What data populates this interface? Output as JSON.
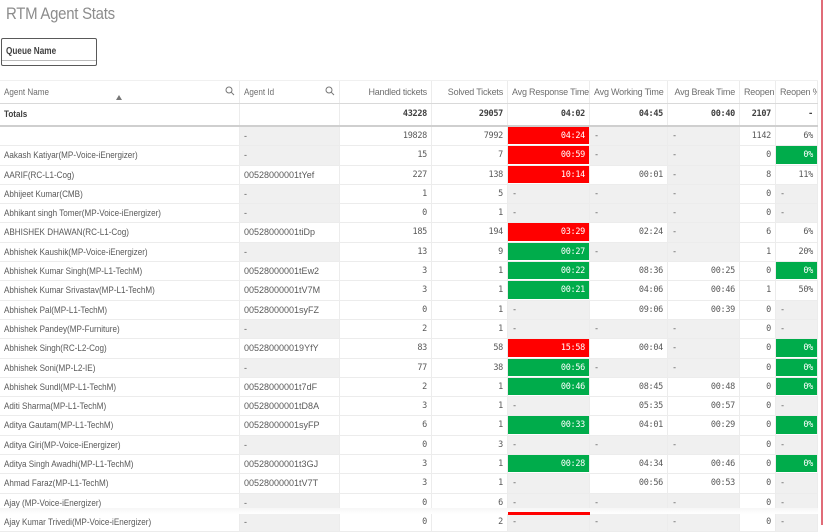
{
  "title": "RTM Agent Stats",
  "filter": {
    "queue_name_label": "Queue Name"
  },
  "colors": {
    "red": "#ff0000",
    "green": "#00ac4b",
    "dash_bg": "#f0f0f0",
    "accent_border": "#e06c78"
  },
  "table": {
    "headers": {
      "agent_name": "Agent Name",
      "agent_id": "Agent Id",
      "handled": "Handled tickets",
      "solved": "Solved Tickets",
      "avg_response": "Avg Response Time",
      "avg_working": "Avg Working Time",
      "avg_break": "Avg Break Time",
      "reopen": "Reopen",
      "reopen_pct": "Reopen %"
    },
    "totals": {
      "label": "Totals",
      "handled": "43228",
      "solved": "29057",
      "avg_response": "04:02",
      "avg_working": "04:45",
      "avg_break": "00:40",
      "reopen": "2107",
      "reopen_pct": "-"
    },
    "rows": [
      {
        "name": "",
        "id": "-",
        "handled": "19828",
        "solved": "7992",
        "resp": "04:24",
        "resp_c": "red",
        "work": "-",
        "brk": "-",
        "reo": "1142",
        "reop": "6%",
        "reop_c": ""
      },
      {
        "name": "Aakash Katiyar(MP-Voice-iEnergizer)",
        "id": "-",
        "handled": "15",
        "solved": "7",
        "resp": "00:59",
        "resp_c": "red",
        "work": "-",
        "brk": "-",
        "reo": "0",
        "reop": "0%",
        "reop_c": "green"
      },
      {
        "name": "AARIF(RC-L1-Cog)",
        "id": "00528000001tYef",
        "handled": "227",
        "solved": "138",
        "resp": "10:14",
        "resp_c": "red",
        "work": "00:01",
        "brk": "-",
        "reo": "8",
        "reop": "11%",
        "reop_c": ""
      },
      {
        "name": "Abhijeet Kumar(CMB)",
        "id": "-",
        "handled": "1",
        "solved": "5",
        "resp": "-",
        "resp_c": "",
        "work": "-",
        "brk": "-",
        "reo": "0",
        "reop": "-",
        "reop_c": ""
      },
      {
        "name": "Abhikant singh Tomer(MP-Voice-iEnergizer)",
        "id": "-",
        "handled": "0",
        "solved": "1",
        "resp": "-",
        "resp_c": "",
        "work": "-",
        "brk": "-",
        "reo": "0",
        "reop": "-",
        "reop_c": ""
      },
      {
        "name": "ABHISHEK DHAWAN(RC-L1-Cog)",
        "id": "00528000001tiDp",
        "handled": "185",
        "solved": "194",
        "resp": "03:29",
        "resp_c": "red",
        "work": "02:24",
        "brk": "-",
        "reo": "6",
        "reop": "6%",
        "reop_c": ""
      },
      {
        "name": "Abhishek Kaushik(MP-Voice-iEnergizer)",
        "id": "-",
        "handled": "13",
        "solved": "9",
        "resp": "00:27",
        "resp_c": "green",
        "work": "-",
        "brk": "-",
        "reo": "1",
        "reop": "20%",
        "reop_c": ""
      },
      {
        "name": "Abhishek Kumar Singh(MP-L1-TechM)",
        "id": "00528000001tEw2",
        "handled": "3",
        "solved": "1",
        "resp": "00:22",
        "resp_c": "green",
        "work": "08:36",
        "brk": "00:25",
        "reo": "0",
        "reop": "0%",
        "reop_c": "green"
      },
      {
        "name": "Abhishek Kumar Srivastav(MP-L1-TechM)",
        "id": "00528000001tV7M",
        "handled": "3",
        "solved": "1",
        "resp": "00:21",
        "resp_c": "green",
        "work": "04:06",
        "brk": "00:46",
        "reo": "1",
        "reop": "50%",
        "reop_c": ""
      },
      {
        "name": "Abhishek Pal(MP-L1-TechM)",
        "id": "00528000001syFZ",
        "handled": "0",
        "solved": "1",
        "resp": "-",
        "resp_c": "",
        "work": "09:06",
        "brk": "00:39",
        "reo": "0",
        "reop": "-",
        "reop_c": ""
      },
      {
        "name": "Abhishek Pandey(MP-Furniture)",
        "id": "-",
        "handled": "2",
        "solved": "1",
        "resp": "-",
        "resp_c": "",
        "work": "-",
        "brk": "-",
        "reo": "0",
        "reop": "-",
        "reop_c": ""
      },
      {
        "name": "Abhishek Singh(RC-L2-Cog)",
        "id": "005280000019YfY",
        "handled": "83",
        "solved": "58",
        "resp": "15:58",
        "resp_c": "red",
        "work": "00:04",
        "brk": "-",
        "reo": "0",
        "reop": "0%",
        "reop_c": "green"
      },
      {
        "name": "Abhishek Soni(MP-L2-IE)",
        "id": "-",
        "handled": "77",
        "solved": "38",
        "resp": "00:56",
        "resp_c": "green",
        "work": "-",
        "brk": "-",
        "reo": "0",
        "reop": "0%",
        "reop_c": "green"
      },
      {
        "name": "Abhishek Sundl(MP-L1-TechM)",
        "id": "00528000001t7dF",
        "handled": "2",
        "solved": "1",
        "resp": "00:46",
        "resp_c": "green",
        "work": "08:45",
        "brk": "00:48",
        "reo": "0",
        "reop": "0%",
        "reop_c": "green"
      },
      {
        "name": "Aditi Sharma(MP-L1-TechM)",
        "id": "00528000001tD8A",
        "handled": "3",
        "solved": "1",
        "resp": "-",
        "resp_c": "",
        "work": "05:35",
        "brk": "00:57",
        "reo": "0",
        "reop": "-",
        "reop_c": ""
      },
      {
        "name": "Aditya Gautam(MP-L1-TechM)",
        "id": "00528000001syFP",
        "handled": "6",
        "solved": "1",
        "resp": "00:33",
        "resp_c": "green",
        "work": "04:01",
        "brk": "00:29",
        "reo": "0",
        "reop": "0%",
        "reop_c": "green"
      },
      {
        "name": "Aditya Giri(MP-Voice-iEnergizer)",
        "id": "-",
        "handled": "0",
        "solved": "3",
        "resp": "-",
        "resp_c": "",
        "work": "-",
        "brk": "-",
        "reo": "0",
        "reop": "-",
        "reop_c": ""
      },
      {
        "name": "Aditya Singh Awadhi(MP-L1-TechM)",
        "id": "00528000001t3GJ",
        "handled": "3",
        "solved": "1",
        "resp": "00:28",
        "resp_c": "green",
        "work": "04:34",
        "brk": "00:46",
        "reo": "0",
        "reop": "0%",
        "reop_c": "green"
      },
      {
        "name": "Ahmad Faraz(MP-L1-TechM)",
        "id": "00528000001tV7T",
        "handled": "3",
        "solved": "1",
        "resp": "-",
        "resp_c": "",
        "work": "00:56",
        "brk": "00:53",
        "reo": "0",
        "reop": "-",
        "reop_c": ""
      },
      {
        "name": "Ajay (MP-Voice-iEnergizer)",
        "id": "-",
        "handled": "0",
        "solved": "6",
        "resp": "-",
        "resp_c": "",
        "work": "-",
        "brk": "-",
        "reo": "0",
        "reop": "-",
        "reop_c": ""
      },
      {
        "name": "Ajay Kumar Trivedi(MP-Voice-iEnergizer)",
        "id": "-",
        "handled": "0",
        "solved": "2",
        "resp": "-",
        "resp_c": "",
        "work": "-",
        "brk": "-",
        "reo": "0",
        "reop": "-",
        "reop_c": ""
      }
    ]
  }
}
